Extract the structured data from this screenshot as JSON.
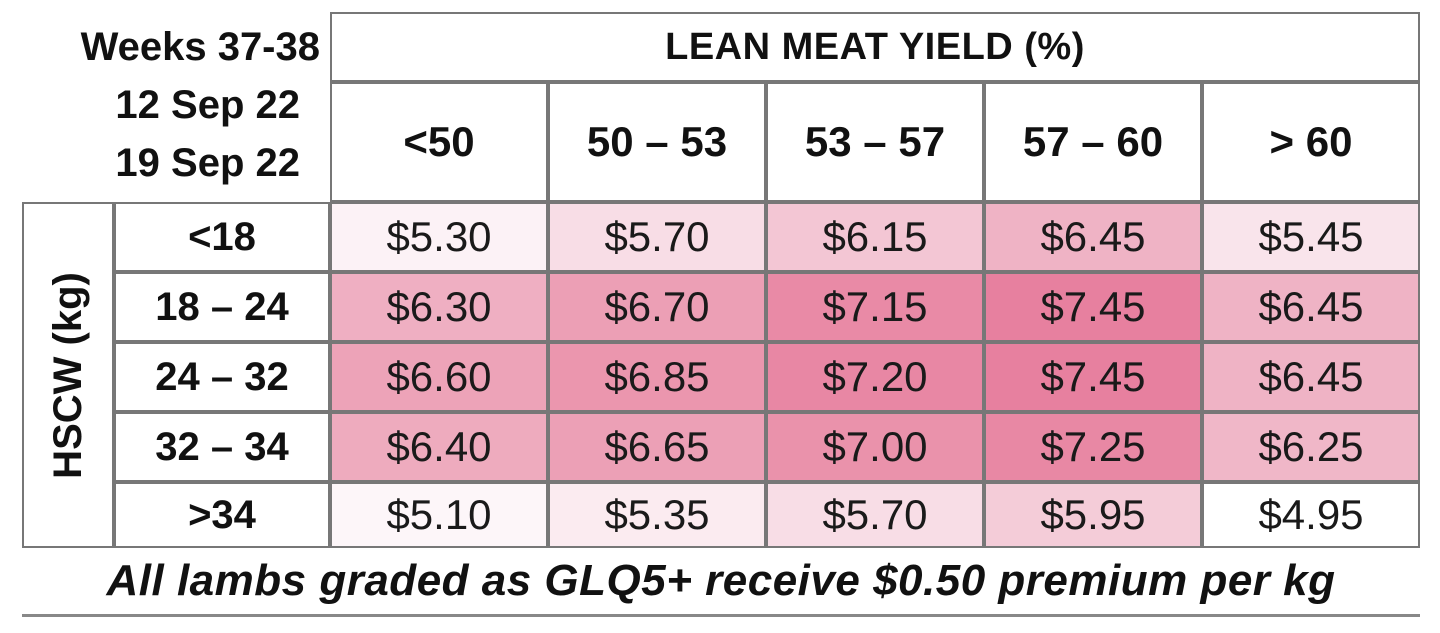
{
  "header": {
    "week_lines": [
      "Weeks 37-38",
      "12 Sep 22",
      "19 Sep 22"
    ],
    "yield_title": "LEAN MEAT YIELD (%)",
    "columns": [
      "<50",
      "50 – 53",
      "53 – 57",
      "57 – 60",
      "> 60"
    ]
  },
  "side_label": "HSCW (kg)",
  "rows": [
    {
      "label": "<18",
      "values": [
        "$5.30",
        "$5.70",
        "$6.15",
        "$6.45",
        "$5.45"
      ]
    },
    {
      "label": "18 – 24",
      "values": [
        "$6.30",
        "$6.70",
        "$7.15",
        "$7.45",
        "$6.45"
      ]
    },
    {
      "label": "24 – 32",
      "values": [
        "$6.60",
        "$6.85",
        "$7.20",
        "$7.45",
        "$6.45"
      ]
    },
    {
      "label": "32 – 34",
      "values": [
        "$6.40",
        "$6.65",
        "$7.00",
        "$7.25",
        "$6.25"
      ]
    },
    {
      "label": ">34",
      "values": [
        "$5.10",
        "$5.35",
        "$5.70",
        "$5.95",
        "$4.95"
      ]
    }
  ],
  "footer": "All lambs graded as GLQ5+ receive $0.50 premium per kg",
  "colors": {
    "heat_low": "#fbeef3",
    "heat_high": "#e9809f",
    "border": "#777777"
  }
}
